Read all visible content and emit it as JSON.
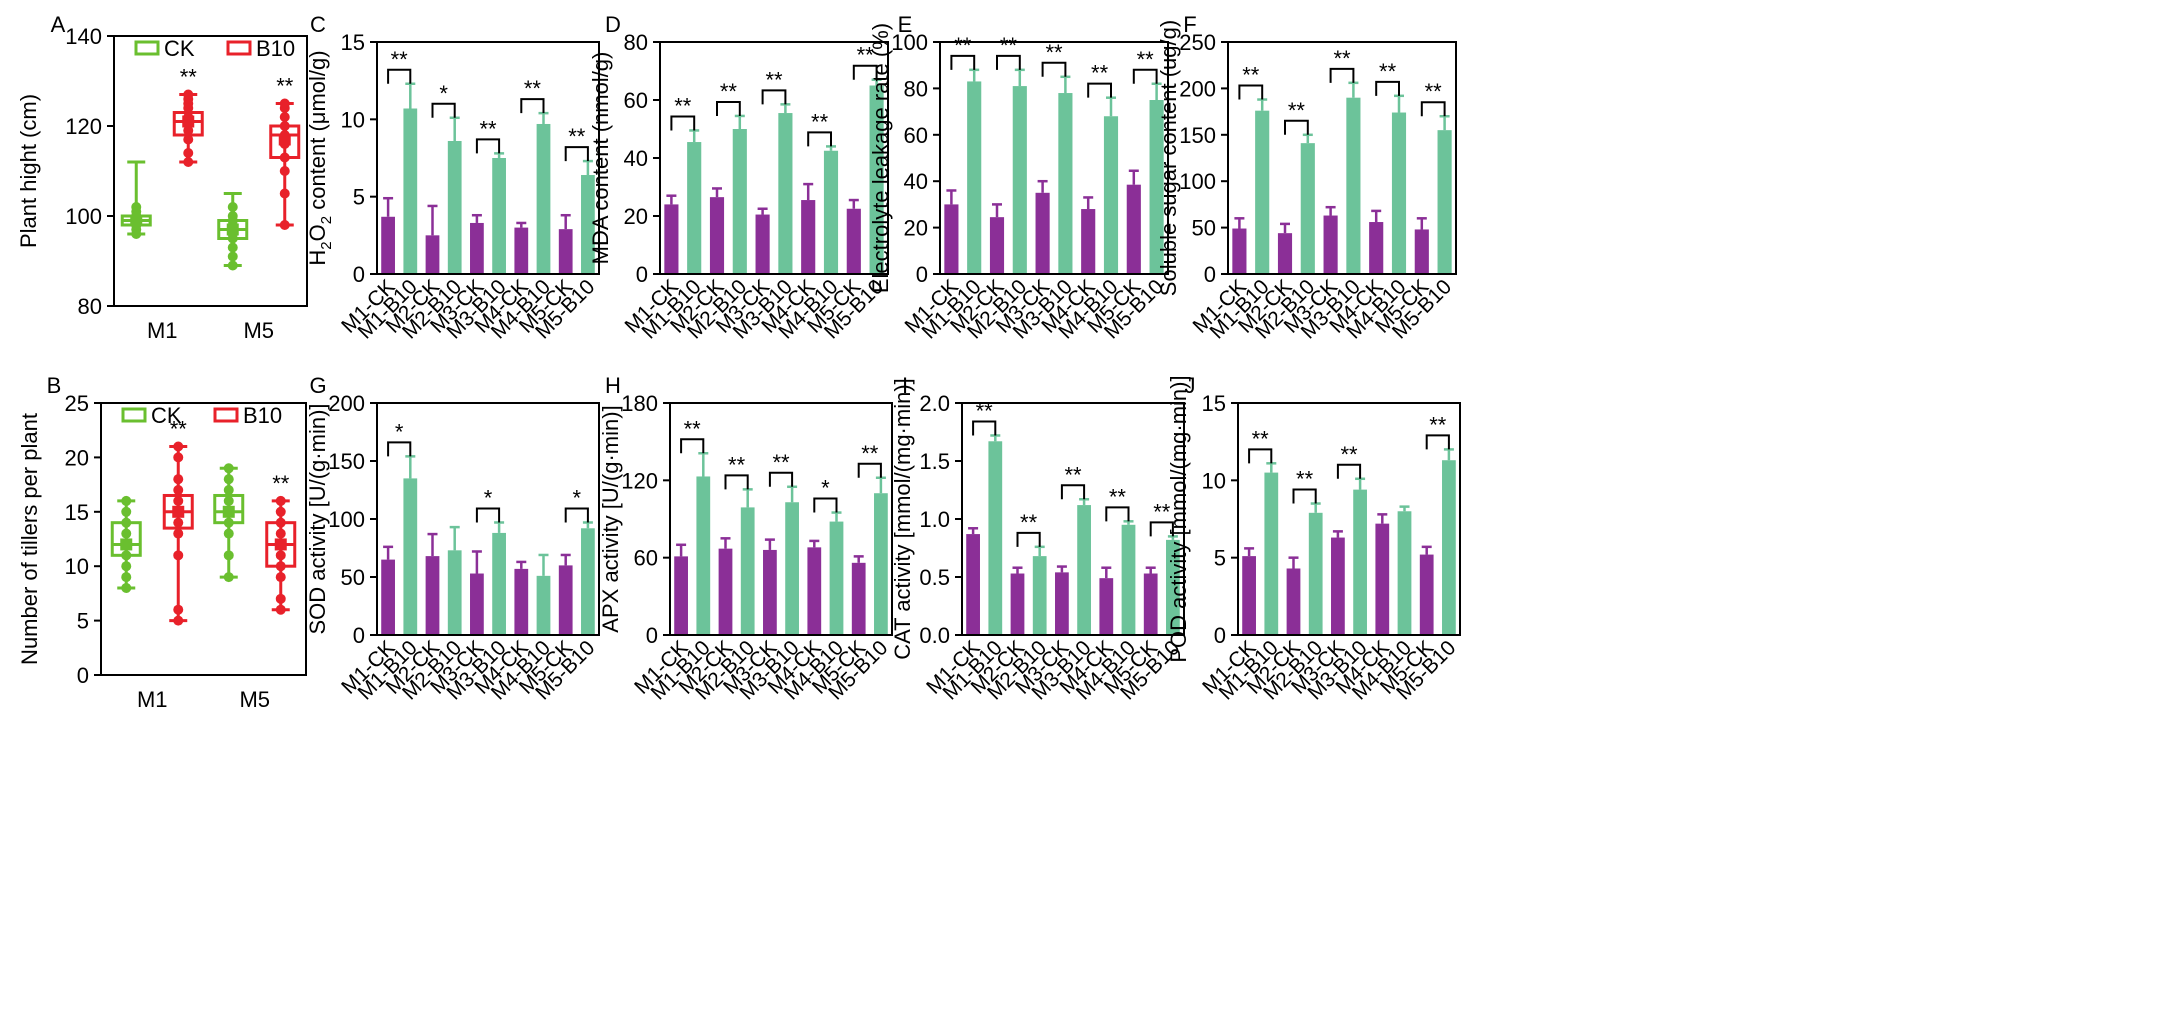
{
  "colors": {
    "ck_box": "#6abf2f",
    "b10_box": "#e8212a",
    "ck_bar": "#8b2f97",
    "b10_bar": "#6cc39a"
  },
  "chart_data": [
    {
      "id": "A",
      "type": "box",
      "letter": "A",
      "ylabel": "Plant hight (cm)",
      "ylim": [
        80,
        140
      ],
      "yticks": [
        80,
        100,
        120,
        140
      ],
      "categories": [
        "M1",
        "M5"
      ],
      "legend": [
        "CK",
        "B10"
      ],
      "series": [
        {
          "name": "CK",
          "boxes": [
            {
              "min": 96,
              "q1": 98,
              "median": 99,
              "q3": 100,
              "max": 112,
              "mean": 99,
              "points": [
                96,
                97,
                98,
                98,
                99,
                99,
                100,
                100,
                101,
                102
              ]
            },
            {
              "min": 89,
              "q1": 95,
              "median": 97,
              "q3": 99,
              "max": 105,
              "mean": 97,
              "points": [
                89,
                91,
                93,
                95,
                96,
                97,
                98,
                99,
                100,
                102
              ]
            }
          ]
        },
        {
          "name": "B10",
          "boxes": [
            {
              "min": 112,
              "q1": 118,
              "median": 121,
              "q3": 123,
              "max": 127,
              "mean": 121,
              "points": [
                112,
                114,
                117,
                119,
                121,
                122,
                124,
                125,
                126,
                127
              ]
            },
            {
              "min": 98,
              "q1": 113,
              "median": 118,
              "q3": 120,
              "max": 125,
              "mean": 117,
              "points": [
                98,
                105,
                110,
                113,
                116,
                118,
                120,
                122,
                124,
                125
              ]
            }
          ]
        }
      ],
      "sig": [
        "**",
        "**"
      ]
    },
    {
      "id": "B",
      "type": "box",
      "letter": "B",
      "ylabel": "Number of tillers per plant",
      "ylim": [
        0,
        25
      ],
      "yticks": [
        0,
        5,
        10,
        15,
        20,
        25
      ],
      "categories": [
        "M1",
        "M5"
      ],
      "legend": [
        "CK",
        "B10"
      ],
      "series": [
        {
          "name": "CK",
          "boxes": [
            {
              "min": 8,
              "q1": 11,
              "median": 12,
              "q3": 14,
              "max": 16,
              "mean": 12,
              "points": [
                8,
                9,
                10,
                11,
                12,
                13,
                14,
                15,
                16
              ]
            },
            {
              "min": 9,
              "q1": 14,
              "median": 15,
              "q3": 16.5,
              "max": 19,
              "mean": 15,
              "points": [
                9,
                11,
                13,
                14,
                15,
                16,
                17,
                18,
                19
              ]
            }
          ]
        },
        {
          "name": "B10",
          "boxes": [
            {
              "min": 5,
              "q1": 13.5,
              "median": 15,
              "q3": 16.5,
              "max": 21,
              "mean": 15,
              "points": [
                5,
                6,
                11,
                13,
                14,
                15,
                16,
                17,
                18,
                20,
                21
              ]
            },
            {
              "min": 6,
              "q1": 10,
              "median": 12,
              "q3": 14,
              "max": 16,
              "mean": 12,
              "points": [
                6,
                7,
                9,
                10,
                11,
                12,
                13,
                14,
                15,
                16
              ]
            }
          ]
        }
      ],
      "sig": [
        "**",
        "**"
      ]
    },
    {
      "id": "C",
      "type": "bar",
      "letter": "C",
      "ylabel_pre": "H",
      "ylabel_sub1": "2",
      "ylabel_mid": "O",
      "ylabel_sub2": "2",
      "ylabel_post": " content (μmol/g)",
      "ylim": [
        0,
        15
      ],
      "yticks": [
        0,
        5,
        10,
        15
      ],
      "categories": [
        "M1-CK",
        "M1-B10",
        "M2-CK",
        "M2-B10",
        "M3-CK",
        "M3-B10",
        "M4-CK",
        "M4-B10",
        "M5-CK",
        "M5-B10"
      ],
      "values": [
        3.7,
        10.7,
        2.5,
        8.6,
        3.3,
        7.5,
        3.0,
        9.7,
        2.9,
        6.4
      ],
      "errors": [
        1.2,
        1.6,
        1.9,
        1.5,
        0.5,
        0.3,
        0.3,
        0.7,
        0.9,
        0.9
      ],
      "sig": [
        "**",
        "*",
        "**",
        "**",
        "**"
      ]
    },
    {
      "id": "D",
      "type": "bar",
      "letter": "D",
      "ylabel": "MDA content (nmol/g)",
      "ylim": [
        0,
        80
      ],
      "yticks": [
        0,
        20,
        40,
        60,
        80
      ],
      "categories": [
        "M1-CK",
        "M1-B10",
        "M2-CK",
        "M2-B10",
        "M3-CK",
        "M3-B10",
        "M4-CK",
        "M4-B10",
        "M5-CK",
        "M5-B10"
      ],
      "values": [
        24,
        45.5,
        26.5,
        50,
        20.5,
        55.5,
        25.5,
        42.5,
        22.5,
        65
      ],
      "errors": [
        3,
        4,
        3,
        4.5,
        2,
        3,
        5.5,
        1.5,
        3,
        2
      ],
      "sig": [
        "**",
        "**",
        "**",
        "**",
        "**"
      ]
    },
    {
      "id": "E",
      "type": "bar",
      "letter": "E",
      "ylabel": "Electrolyte leakage rate (%)",
      "ylim": [
        0,
        100
      ],
      "yticks": [
        0,
        20,
        40,
        60,
        80,
        100
      ],
      "categories": [
        "M1-CK",
        "M1-B10",
        "M2-CK",
        "M2-B10",
        "M3-CK",
        "M3-B10",
        "M4-CK",
        "M4-B10",
        "M5-CK",
        "M5-B10"
      ],
      "values": [
        30,
        83,
        24.5,
        81,
        35,
        78,
        28,
        68,
        38.5,
        75
      ],
      "errors": [
        6,
        5,
        5.5,
        7,
        5,
        7,
        5,
        8,
        6,
        7
      ],
      "sig": [
        "**",
        "**",
        "**",
        "**",
        "**"
      ]
    },
    {
      "id": "F",
      "type": "bar",
      "letter": "F",
      "ylabel": "Soluble sugar content (ug/g)",
      "ylim": [
        0,
        250
      ],
      "yticks": [
        0,
        50,
        100,
        150,
        200,
        250
      ],
      "categories": [
        "M1-CK",
        "M1-B10",
        "M2-CK",
        "M2-B10",
        "M3-CK",
        "M3-B10",
        "M4-CK",
        "M4-B10",
        "M5-CK",
        "M5-B10"
      ],
      "values": [
        49,
        176,
        44,
        141,
        63,
        190,
        56,
        174,
        48,
        155
      ],
      "errors": [
        11,
        12,
        10,
        9,
        9,
        16,
        12,
        18,
        12,
        15
      ],
      "sig": [
        "**",
        "**",
        "**",
        "**",
        "**"
      ]
    },
    {
      "id": "G",
      "type": "bar",
      "letter": "G",
      "ylabel": "SOD activity [U/(g·min)]",
      "ylim": [
        0,
        200
      ],
      "yticks": [
        0,
        50,
        100,
        150,
        200
      ],
      "categories": [
        "M1-CK",
        "M1-B10",
        "M2-CK",
        "M2-B10",
        "M3-CK",
        "M3-B10",
        "M4-CK",
        "M4-B10",
        "M5-CK",
        "M5-B10"
      ],
      "values": [
        65,
        135,
        68,
        73,
        53,
        88,
        57,
        51,
        60,
        92
      ],
      "errors": [
        11,
        19,
        19,
        20,
        19,
        9,
        6,
        18,
        9,
        5
      ],
      "sig": [
        "*",
        "",
        "*",
        "",
        "*"
      ]
    },
    {
      "id": "H",
      "type": "bar",
      "letter": "H",
      "ylabel": "APX activity [U/(g·min)]",
      "ylim": [
        0,
        180
      ],
      "yticks": [
        0,
        60,
        120,
        180
      ],
      "categories": [
        "M1-CK",
        "M1-B10",
        "M2-CK",
        "M2-B10",
        "M3-CK",
        "M3-B10",
        "M4-CK",
        "M4-B10",
        "M5-CK",
        "M5-B10"
      ],
      "values": [
        61,
        123,
        67,
        99,
        66,
        103,
        68,
        88,
        56,
        110
      ],
      "errors": [
        9,
        18,
        8,
        14,
        8,
        12,
        5,
        7,
        5,
        12
      ],
      "sig": [
        "**",
        "**",
        "**",
        "*",
        "**"
      ]
    },
    {
      "id": "I",
      "type": "bar",
      "letter": "I",
      "ylabel": "CAT activity [mmol/(mg·min)]",
      "ylim": [
        0,
        2.0
      ],
      "yticks": [
        0.0,
        0.5,
        1.0,
        1.5,
        2.0
      ],
      "categories": [
        "M1-CK",
        "M1-B10",
        "M2-CK",
        "M2-B10",
        "M3-CK",
        "M3-B10",
        "M4-CK",
        "M4-B10",
        "M5-CK",
        "M5-B10"
      ],
      "values": [
        0.87,
        1.67,
        0.53,
        0.68,
        0.54,
        1.12,
        0.49,
        0.95,
        0.53,
        0.82
      ],
      "errors": [
        0.05,
        0.05,
        0.05,
        0.08,
        0.05,
        0.05,
        0.09,
        0.03,
        0.05,
        0.03
      ],
      "sig": [
        "**",
        "**",
        "**",
        "**",
        "**"
      ]
    },
    {
      "id": "J",
      "type": "bar",
      "letter": "J",
      "ylabel": "POD activity [mmol/(mg·min)]",
      "ylim": [
        0,
        15
      ],
      "yticks": [
        0,
        5,
        10,
        15
      ],
      "categories": [
        "M1-CK",
        "M1-B10",
        "M2-CK",
        "M2-B10",
        "M3-CK",
        "M3-B10",
        "M4-CK",
        "M4-B10",
        "M5-CK",
        "M5-B10"
      ],
      "values": [
        5.1,
        10.5,
        4.3,
        7.9,
        6.3,
        9.4,
        7.2,
        8.0,
        5.2,
        11.3
      ],
      "errors": [
        0.5,
        0.6,
        0.7,
        0.6,
        0.4,
        0.7,
        0.6,
        0.3,
        0.5,
        0.7
      ],
      "sig": [
        "**",
        "**",
        "**",
        "",
        "**"
      ]
    }
  ]
}
